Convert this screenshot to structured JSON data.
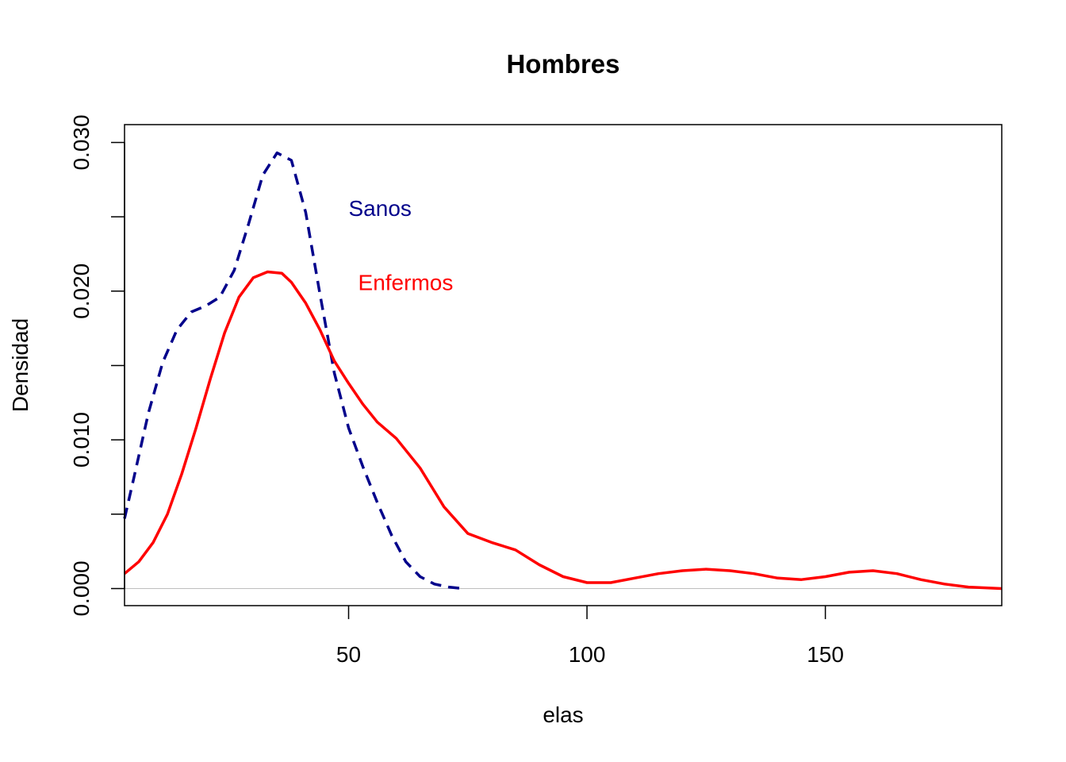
{
  "chart_data": {
    "type": "line",
    "title": "Hombres",
    "xlabel": "elas",
    "ylabel": "Densidad",
    "xlim": [
      3,
      187
    ],
    "ylim": [
      -0.00115,
      0.0312
    ],
    "x_ticks": [
      50,
      100,
      150
    ],
    "x_tick_labels": [
      "50",
      "100",
      "150"
    ],
    "y_ticks": [
      0,
      0.005,
      0.01,
      0.015,
      0.02,
      0.025,
      0.03
    ],
    "y_tick_labels": [
      "0.000",
      "0.010",
      "0.020",
      "0.030"
    ],
    "y_labeled_ticks": [
      0,
      0.01,
      0.02,
      0.03
    ],
    "baseline": 0,
    "grid": false,
    "legend": "none",
    "series": [
      {
        "color": "#00008B",
        "style": "dashed",
        "x": [
          3,
          5,
          8,
          11,
          14,
          17,
          20,
          23,
          26,
          29,
          32,
          35,
          38,
          41,
          44,
          47,
          50,
          53,
          56,
          59,
          62,
          65,
          68,
          71,
          74
        ],
        "y": [
          0.0047,
          0.0075,
          0.0118,
          0.0152,
          0.0174,
          0.0186,
          0.019,
          0.0196,
          0.0214,
          0.0245,
          0.0278,
          0.0293,
          0.0288,
          0.0253,
          0.0198,
          0.0145,
          0.0108,
          0.0082,
          0.0058,
          0.0036,
          0.0018,
          0.0008,
          0.0003,
          0.0001,
          0.0
        ]
      },
      {
        "color": "#FF0000",
        "style": "solid",
        "x": [
          3,
          6,
          9,
          12,
          15,
          18,
          21,
          24,
          27,
          30,
          33,
          36,
          38,
          41,
          44,
          47,
          50,
          53,
          56,
          60,
          65,
          70,
          75,
          80,
          85,
          90,
          95,
          100,
          105,
          110,
          115,
          120,
          125,
          130,
          135,
          140,
          145,
          150,
          155,
          160,
          165,
          170,
          175,
          180,
          187
        ],
        "y": [
          0.001,
          0.0018,
          0.0031,
          0.005,
          0.0077,
          0.0108,
          0.0141,
          0.0172,
          0.0196,
          0.0209,
          0.0213,
          0.0212,
          0.0206,
          0.0192,
          0.0174,
          0.0153,
          0.0138,
          0.0124,
          0.0112,
          0.0101,
          0.0081,
          0.0055,
          0.0037,
          0.0031,
          0.0026,
          0.0016,
          0.0008,
          0.0004,
          0.0004,
          0.0007,
          0.001,
          0.0012,
          0.0013,
          0.0012,
          0.001,
          0.0007,
          0.0006,
          0.0008,
          0.0011,
          0.0012,
          0.001,
          0.0006,
          0.0003,
          0.0001,
          0.0
        ]
      }
    ],
    "annotations": [
      {
        "text": "Sanos",
        "x": 50,
        "y": 0.0256,
        "color": "#00008B"
      },
      {
        "text": "Enfermos",
        "x": 52,
        "y": 0.0206,
        "color": "#FF0000"
      }
    ]
  }
}
